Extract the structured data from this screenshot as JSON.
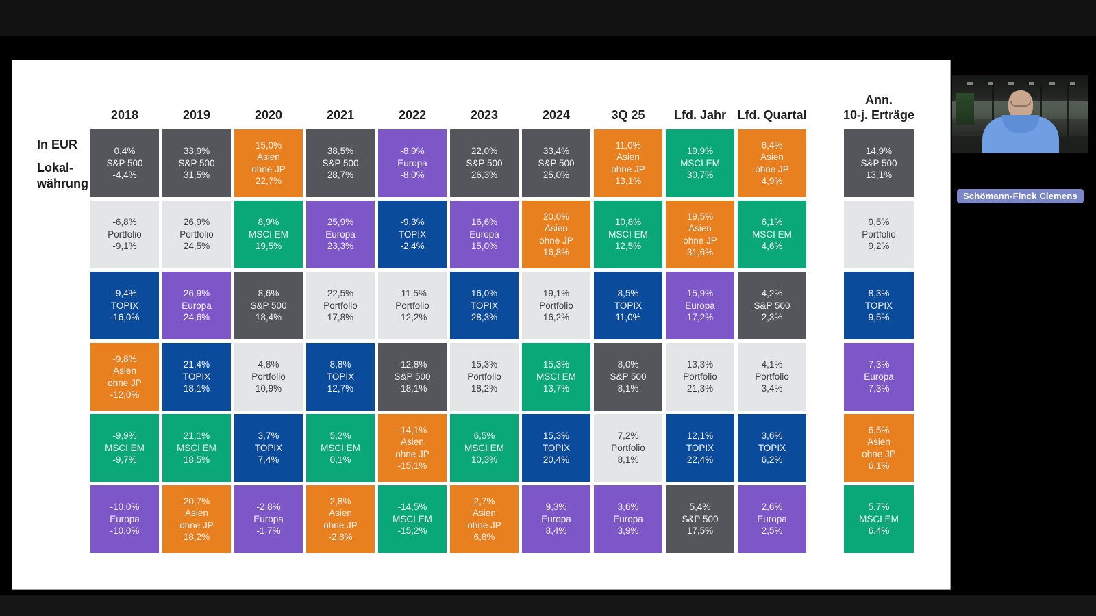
{
  "colors": {
    "background": "#000000",
    "top_strip": "#121212",
    "slide_bg": "#ffffff",
    "name_tag_bg": "#7b86c6",
    "text_on_dark": "#f2f2f2",
    "text_on_light": "#3d3e42",
    "header_text": "#1f1f1f"
  },
  "webcam": {
    "name": "Schömann-Finck Clemens"
  },
  "chart_data": {
    "type": "table",
    "left_labels": [
      "In EUR",
      "Lokal-\nwährung"
    ],
    "asset_colors": {
      "S&P 500": "#55565b",
      "Portfolio": "#e4e5e7",
      "TOPIX": "#0b4b9b",
      "Europa": "#7d57c8",
      "Asien ohne JP": "#e8801f",
      "MSCI EM": "#0aa878"
    },
    "light_assets": [
      "Portfolio"
    ],
    "cell_format": [
      "return_in_eur",
      "asset",
      "return_local_currency"
    ],
    "columns": [
      {
        "header": "2018",
        "cells": [
          [
            "0,4%",
            "S&P 500",
            "-4,4%"
          ],
          [
            "-6,8%",
            "Portfolio",
            "-9,1%"
          ],
          [
            "-9,4%",
            "TOPIX",
            "-16,0%"
          ],
          [
            "-9,8%",
            "Asien ohne JP",
            "-12,0%"
          ],
          [
            "-9,9%",
            "MSCI EM",
            "-9,7%"
          ],
          [
            "-10,0%",
            "Europa",
            "-10,0%"
          ]
        ]
      },
      {
        "header": "2019",
        "cells": [
          [
            "33,9%",
            "S&P 500",
            "31,5%"
          ],
          [
            "26,9%",
            "Portfolio",
            "24,5%"
          ],
          [
            "26,9%",
            "Europa",
            "24,6%"
          ],
          [
            "21,4%",
            "TOPIX",
            "18,1%"
          ],
          [
            "21,1%",
            "MSCI EM",
            "18,5%"
          ],
          [
            "20,7%",
            "Asien ohne JP",
            "18,2%"
          ]
        ]
      },
      {
        "header": "2020",
        "cells": [
          [
            "15,0%",
            "Asien ohne JP",
            "22,7%"
          ],
          [
            "8,9%",
            "MSCI EM",
            "19,5%"
          ],
          [
            "8,6%",
            "S&P 500",
            "18,4%"
          ],
          [
            "4,8%",
            "Portfolio",
            "10,9%"
          ],
          [
            "3,7%",
            "TOPIX",
            "7,4%"
          ],
          [
            "-2,8%",
            "Europa",
            "-1,7%"
          ]
        ]
      },
      {
        "header": "2021",
        "cells": [
          [
            "38,5%",
            "S&P 500",
            "28,7%"
          ],
          [
            "25,9%",
            "Europa",
            "23,3%"
          ],
          [
            "22,5%",
            "Portfolio",
            "17,8%"
          ],
          [
            "8,8%",
            "TOPIX",
            "12,7%"
          ],
          [
            "5,2%",
            "MSCI EM",
            "0,1%"
          ],
          [
            "2,8%",
            "Asien ohne JP",
            "-2,8%"
          ]
        ]
      },
      {
        "header": "2022",
        "cells": [
          [
            "-8,9%",
            "Europa",
            "-8,0%"
          ],
          [
            "-9,3%",
            "TOPIX",
            "-2,4%"
          ],
          [
            "-11,5%",
            "Portfolio",
            "-12,2%"
          ],
          [
            "-12,8%",
            "S&P 500",
            "-18,1%"
          ],
          [
            "-14,1%",
            "Asien ohne JP",
            "-15,1%"
          ],
          [
            "-14,5%",
            "MSCI EM",
            "-15,2%"
          ]
        ]
      },
      {
        "header": "2023",
        "cells": [
          [
            "22,0%",
            "S&P 500",
            "26,3%"
          ],
          [
            "16,6%",
            "Europa",
            "15,0%"
          ],
          [
            "16,0%",
            "TOPIX",
            "28,3%"
          ],
          [
            "15,3%",
            "Portfolio",
            "18,2%"
          ],
          [
            "6,5%",
            "MSCI EM",
            "10,3%"
          ],
          [
            "2,7%",
            "Asien ohne JP",
            "6,8%"
          ]
        ]
      },
      {
        "header": "2024",
        "cells": [
          [
            "33,4%",
            "S&P 500",
            "25,0%"
          ],
          [
            "20,0%",
            "Asien ohne JP",
            "16,8%"
          ],
          [
            "19,1%",
            "Portfolio",
            "16,2%"
          ],
          [
            "15,3%",
            "MSCI EM",
            "13,7%"
          ],
          [
            "15,3%",
            "TOPIX",
            "20,4%"
          ],
          [
            "9,3%",
            "Europa",
            "8,4%"
          ]
        ]
      },
      {
        "header": "3Q 25",
        "cells": [
          [
            "11,0%",
            "Asien ohne JP",
            "13,1%"
          ],
          [
            "10,8%",
            "MSCI EM",
            "12,5%"
          ],
          [
            "8,5%",
            "TOPIX",
            "11,0%"
          ],
          [
            "8,0%",
            "S&P 500",
            "8,1%"
          ],
          [
            "7,2%",
            "Portfolio",
            "8,1%"
          ],
          [
            "3,6%",
            "Europa",
            "3,9%"
          ]
        ]
      },
      {
        "header": "Lfd. Jahr",
        "cells": [
          [
            "19,9%",
            "MSCI EM",
            "30,7%"
          ],
          [
            "19,5%",
            "Asien ohne JP",
            "31,6%"
          ],
          [
            "15,9%",
            "Europa",
            "17,2%"
          ],
          [
            "13,3%",
            "Portfolio",
            "21,3%"
          ],
          [
            "12,1%",
            "TOPIX",
            "22,4%"
          ],
          [
            "5,4%",
            "S&P 500",
            "17,5%"
          ]
        ]
      },
      {
        "header": "Lfd. Quartal",
        "cells": [
          [
            "6,4%",
            "Asien ohne JP",
            "4,9%"
          ],
          [
            "6,1%",
            "MSCI EM",
            "4,6%"
          ],
          [
            "4,2%",
            "S&P 500",
            "2,3%"
          ],
          [
            "4,1%",
            "Portfolio",
            "3,4%"
          ],
          [
            "3,6%",
            "TOPIX",
            "6,2%"
          ],
          [
            "2,6%",
            "Europa",
            "2,5%"
          ]
        ]
      }
    ],
    "annual_column": {
      "header_line1": "Ann.",
      "header_line2": "10-j. Erträge",
      "cells": [
        [
          "14,9%",
          "S&P 500",
          "13,1%"
        ],
        [
          "9,5%",
          "Portfolio",
          "9,2%"
        ],
        [
          "8,3%",
          "TOPIX",
          "9,5%"
        ],
        [
          "7,3%",
          "Europa",
          "7,3%"
        ],
        [
          "6,5%",
          "Asien ohne JP",
          "6,1%"
        ],
        [
          "5,7%",
          "MSCI EM",
          "6,4%"
        ]
      ]
    }
  }
}
